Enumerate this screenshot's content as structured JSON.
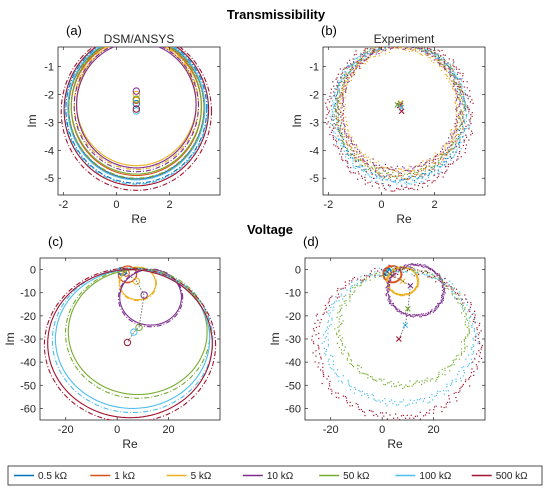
{
  "section_titles": {
    "top": "Transmissibility",
    "bottom": "Voltage"
  },
  "legend": {
    "items": [
      {
        "label": "0.5 kΩ",
        "color": "#0072BD"
      },
      {
        "label": "1 kΩ",
        "color": "#D95319"
      },
      {
        "label": "5 kΩ",
        "color": "#EDB120"
      },
      {
        "label": "10 kΩ",
        "color": "#7E2F8E"
      },
      {
        "label": "50 kΩ",
        "color": "#77AC30"
      },
      {
        "label": "100 kΩ",
        "color": "#4DBEEE"
      },
      {
        "label": "500 kΩ",
        "color": "#A2142F"
      }
    ]
  },
  "chart_data": [
    {
      "panel": "(a)",
      "title": "DSM/ANSYS",
      "type": "line",
      "xlabel": "Re",
      "ylabel": "Im",
      "xlim": [
        -2.2,
        3.9
      ],
      "ylim": [
        -5.6,
        -0.3
      ],
      "xticks": [
        -2,
        0,
        2
      ],
      "yticks": [
        -1,
        -2,
        -3,
        -4,
        -5
      ],
      "style": "solid-and-dashed",
      "markers": "circle",
      "series": [
        {
          "color": "#0072BD",
          "center": [
            0.75,
            -2.47
          ],
          "radius": 2.55,
          "point": [
            0.75,
            -2.33
          ]
        },
        {
          "color": "#D95319",
          "center": [
            0.75,
            -2.45
          ],
          "radius": 2.45,
          "point": [
            0.75,
            -2.21
          ]
        },
        {
          "color": "#EDB120",
          "center": [
            0.75,
            -2.3
          ],
          "radius": 2.25,
          "point": [
            0.75,
            -2.0
          ]
        },
        {
          "color": "#7E2F8E",
          "center": [
            0.75,
            -2.38
          ],
          "radius": 2.25,
          "point": [
            0.75,
            -1.88
          ]
        },
        {
          "color": "#77AC30",
          "center": [
            0.75,
            -2.4
          ],
          "radius": 2.45,
          "point": [
            0.75,
            -2.17
          ]
        },
        {
          "color": "#4DBEEE",
          "center": [
            0.75,
            -2.48
          ],
          "radius": 2.58,
          "point": [
            0.75,
            -2.59
          ]
        },
        {
          "color": "#A2142F",
          "center": [
            0.75,
            -2.55
          ],
          "radius": 2.72,
          "point": [
            0.75,
            -2.52
          ]
        }
      ]
    },
    {
      "panel": "(b)",
      "title": "Experiment",
      "type": "scatter",
      "xlabel": "Re",
      "ylabel": "Im",
      "xlim": [
        -2.2,
        3.9
      ],
      "ylim": [
        -5.6,
        -0.3
      ],
      "xticks": [
        -2,
        0,
        2
      ],
      "yticks": [
        -1,
        -2,
        -3,
        -4,
        -5
      ],
      "style": "noisy-points",
      "markers": "cross",
      "series": [
        {
          "color": "#0072BD",
          "center": [
            0.7,
            -2.62
          ],
          "radius": 2.42,
          "point": [
            0.72,
            -2.33
          ]
        },
        {
          "color": "#D95319",
          "center": [
            0.7,
            -2.6
          ],
          "radius": 2.35,
          "point": [
            0.72,
            -2.4
          ]
        },
        {
          "color": "#EDB120",
          "center": [
            0.7,
            -2.52
          ],
          "radius": 2.18,
          "point": [
            0.72,
            -2.3
          ]
        },
        {
          "color": "#7E2F8E",
          "center": [
            0.7,
            -2.48
          ],
          "radius": 2.22,
          "point": [
            0.68,
            -2.4
          ]
        },
        {
          "color": "#77AC30",
          "center": [
            0.7,
            -2.55
          ],
          "radius": 2.38,
          "point": [
            0.6,
            -2.37
          ]
        },
        {
          "color": "#4DBEEE",
          "center": [
            0.7,
            -2.66
          ],
          "radius": 2.52,
          "point": [
            0.75,
            -2.47
          ]
        },
        {
          "color": "#A2142F",
          "center": [
            0.7,
            -2.72
          ],
          "radius": 2.66,
          "point": [
            0.76,
            -2.6
          ]
        }
      ]
    },
    {
      "panel": "(c)",
      "type": "line",
      "xlabel": "Re",
      "ylabel": "Im",
      "xlim": [
        -30,
        40
      ],
      "ylim": [
        -65,
        5
      ],
      "xticks": [
        -20,
        0,
        20
      ],
      "yticks": [
        0,
        -10,
        -20,
        -30,
        -40,
        -50,
        -60
      ],
      "style": "solid-and-dashed",
      "markers": "circle",
      "series": [
        {
          "color": "#0072BD",
          "center": [
            2,
            -1
          ],
          "radius": 1.5,
          "point": [
            1.5,
            -0.5
          ]
        },
        {
          "color": "#D95319",
          "center": [
            4,
            -2
          ],
          "radius": 3.5,
          "point": [
            3.5,
            -1.5
          ]
        },
        {
          "color": "#EDB120",
          "center": [
            8,
            -6
          ],
          "radius": 7,
          "point": [
            7.5,
            -5
          ]
        },
        {
          "color": "#7E2F8E",
          "center": [
            13,
            -12
          ],
          "radius": 12,
          "point": [
            10.5,
            -11
          ]
        },
        {
          "color": "#77AC30",
          "center": [
            8,
            -27
          ],
          "radius": 27,
          "point": [
            8.5,
            -25
          ]
        },
        {
          "color": "#4DBEEE",
          "center": [
            6,
            -30
          ],
          "radius": 30,
          "point": [
            6.5,
            -27
          ]
        },
        {
          "color": "#A2142F",
          "center": [
            5,
            -32
          ],
          "radius": 32,
          "point": [
            4,
            -31.5
          ]
        }
      ]
    },
    {
      "panel": "(d)",
      "type": "scatter",
      "xlabel": "Re",
      "ylabel": "Im",
      "xlim": [
        -30,
        40
      ],
      "ylim": [
        -65,
        5
      ],
      "xticks": [
        -20,
        0,
        20
      ],
      "yticks": [
        0,
        -10,
        -20,
        -30,
        -40,
        -50,
        -60
      ],
      "style": "noisy-points",
      "markers": "cross",
      "series": [
        {
          "color": "#0072BD",
          "center": [
            2,
            -1
          ],
          "radius": 1.5,
          "point": [
            2,
            -1
          ]
        },
        {
          "color": "#D95319",
          "center": [
            4,
            -2
          ],
          "radius": 3.5,
          "point": [
            4,
            -2.5
          ]
        },
        {
          "color": "#EDB120",
          "center": [
            8,
            -5
          ],
          "radius": 6,
          "point": [
            8,
            -5
          ]
        },
        {
          "color": "#7E2F8E",
          "center": [
            13,
            -9
          ],
          "radius": 11,
          "point": [
            11,
            -7
          ]
        },
        {
          "color": "#77AC30",
          "center": [
            8,
            -25
          ],
          "radius": 25,
          "point": [
            10,
            -17
          ]
        },
        {
          "color": "#4DBEEE",
          "center": [
            7,
            -29
          ],
          "radius": 29,
          "point": [
            9,
            -24
          ]
        },
        {
          "color": "#A2142F",
          "center": [
            6,
            -32
          ],
          "radius": 32,
          "point": [
            6.5,
            -30
          ]
        }
      ]
    }
  ]
}
